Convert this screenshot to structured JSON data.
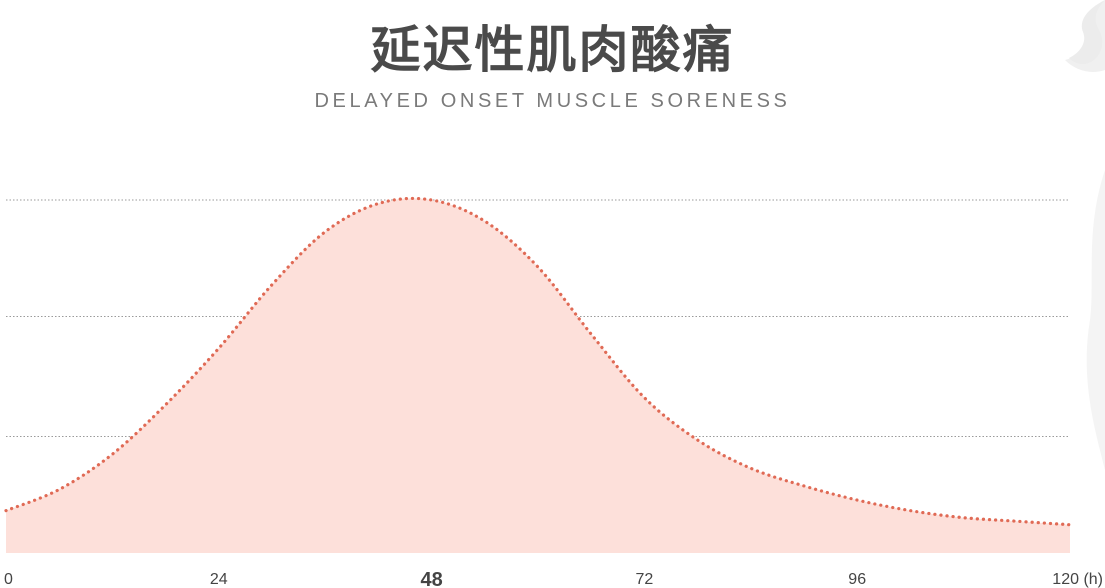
{
  "header": {
    "title": "延迟性肌肉酸痛",
    "subtitle": "DELAYED ONSET MUSCLE SORENESS"
  },
  "colors": {
    "fill": "#fde0da",
    "line": "#e06a55",
    "highlight": "#e06a55",
    "grid": "#9a9a9a",
    "text": "#444444",
    "decoration": "#f2f2f2"
  },
  "chart_data": {
    "type": "area",
    "title": "延迟性肌肉酸痛",
    "subtitle": "DELAYED ONSET MUSCLE SORENESS",
    "xlabel": "",
    "ylabel": "",
    "x_unit": "(h)",
    "xlim": [
      0,
      120
    ],
    "ylim": [
      0,
      1
    ],
    "grid": "horizontal dotted",
    "legend": "none",
    "x_ticks": [
      {
        "value": 0,
        "label": "0",
        "highlight": false
      },
      {
        "value": 24,
        "label": "24",
        "highlight": false
      },
      {
        "value": 48,
        "label": "48",
        "highlight": true
      },
      {
        "value": 72,
        "label": "72",
        "highlight": false
      },
      {
        "value": 96,
        "label": "96",
        "highlight": false
      },
      {
        "value": 120,
        "label": "120 (h)",
        "highlight": false
      }
    ],
    "gridlines_y": [
      0.33,
      0.67,
      1.0
    ],
    "series": [
      {
        "x": [
          0,
          6,
          12,
          18,
          24,
          30,
          36,
          42,
          48,
          54,
          60,
          66,
          72,
          78,
          84,
          90,
          96,
          102,
          108,
          114,
          120
        ],
        "values": [
          0.12,
          0.18,
          0.28,
          0.42,
          0.58,
          0.76,
          0.91,
          0.99,
          1.0,
          0.94,
          0.81,
          0.62,
          0.44,
          0.32,
          0.24,
          0.19,
          0.15,
          0.12,
          0.1,
          0.09,
          0.08
        ]
      }
    ]
  }
}
